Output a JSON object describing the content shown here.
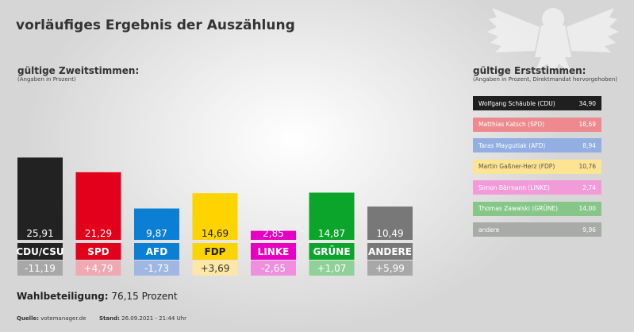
{
  "title": "vorläufiges Ergebnis der Auszählung",
  "zweitstimmen": {
    "heading": "gültige Zweitstimmen:",
    "subheading": "(Angaben in Prozent)"
  },
  "erststimmen": {
    "heading": "gültige Erststimmen:",
    "subheading": "(Angaben in Prozent, Direktmandat hervorgehoben)",
    "rows": [
      {
        "label": "Wolfgang Schäuble (CDU)",
        "value": "34,90",
        "color": "#1f1f1f",
        "text_color": "#ffffff"
      },
      {
        "label": "Matthias Katsch (SPD)",
        "value": "18,69",
        "color": "#ee8a8f",
        "text_color": "#ffffff"
      },
      {
        "label": "Taras Maygutiak (AFD)",
        "value": "8,94",
        "color": "#93aee2",
        "text_color": "#ffffff"
      },
      {
        "label": "Martin Gaßner-Herz (FDP)",
        "value": "10,76",
        "color": "#fde492",
        "text_color": "#555555"
      },
      {
        "label": "Simon Bärmann (LINKE)",
        "value": "2,74",
        "color": "#f39ad9",
        "text_color": "#ffffff"
      },
      {
        "label": "Thomas Zawalski (GRÜNE)",
        "value": "14,00",
        "color": "#86c689",
        "text_color": "#ffffff"
      },
      {
        "label": "andere",
        "value": "9,96",
        "color": "#a8aba8",
        "text_color": "#ffffff"
      }
    ]
  },
  "chart_data": {
    "type": "bar",
    "categories": [
      "CDU/CSU",
      "SPD",
      "AFD",
      "FDP",
      "LINKE",
      "GRÜNE",
      "ANDERE"
    ],
    "values": [
      25.91,
      21.29,
      9.87,
      14.69,
      2.85,
      14.87,
      10.49
    ],
    "value_labels": [
      "25,91",
      "21,29",
      "9,87",
      "14,69",
      "2,85",
      "14,87",
      "10,49"
    ],
    "change_labels": [
      "-11,19",
      "+4,79",
      "-1,73",
      "+3,69",
      "-2,65",
      "+1,07",
      "+5,99"
    ],
    "changes": [
      -11.19,
      4.79,
      -1.73,
      3.69,
      -2.65,
      1.07,
      5.99
    ],
    "colors": [
      "#222222",
      "#e2001a",
      "#0a7fd3",
      "#fdd300",
      "#e600c2",
      "#0ca52c",
      "#787878"
    ],
    "label_text_colors": [
      "#ffffff",
      "#ffffff",
      "#ffffff",
      "#222222",
      "#ffffff",
      "#ffffff",
      "#ffffff"
    ],
    "change_colors": [
      "#a8a8a8",
      "#f0a8b2",
      "#9fb7e2",
      "#fde7a6",
      "#f08fdd",
      "#8ed29a",
      "#a8a8a8"
    ],
    "change_text_colors": [
      "#ffffff",
      "#ffffff",
      "#ffffff",
      "#333333",
      "#ffffff",
      "#ffffff",
      "#ffffff"
    ],
    "ylim": [
      0,
      27
    ]
  },
  "turnout": {
    "label": "Wahlbeteiligung:",
    "value": "76,15 Prozent"
  },
  "footer": {
    "source_label": "Quelle:",
    "source_value": "votemanager.de",
    "stand_label": "Stand:",
    "stand_value": "26.09.2021 - 21:44 Uhr"
  }
}
